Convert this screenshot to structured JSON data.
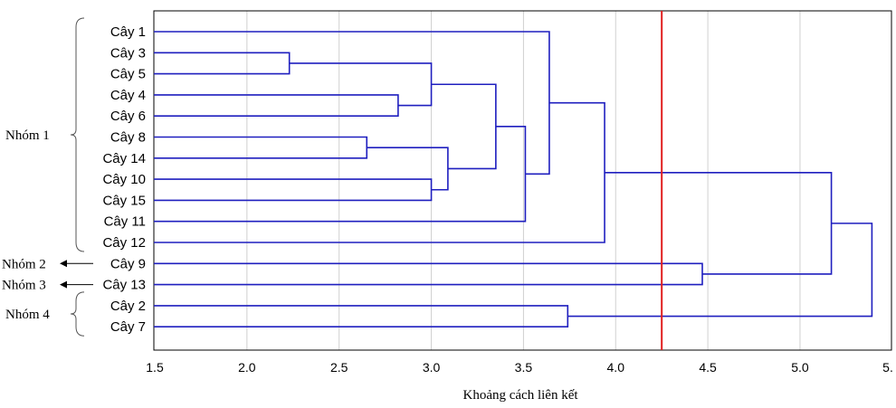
{
  "chart_data": {
    "type": "dendrogram",
    "title": "",
    "xlabel": "Khoảng cách liên kết",
    "ylabel": "",
    "xlim": [
      1.5,
      5.5
    ],
    "xticks": [
      "1.5",
      "2.0",
      "2.5",
      "3.0",
      "3.5",
      "4.0",
      "4.5",
      "5.0",
      "5."
    ],
    "grid": true,
    "line_color": "#1f1fbf",
    "cutoff_color": "#e02020",
    "cutoff": 4.25,
    "leaves": [
      "Cây 1",
      "Cây 3",
      "Cây 5",
      "Cây 4",
      "Cây 6",
      "Cây 8",
      "Cây 14",
      "Cây 10",
      "Cây 15",
      "Cây 11",
      "Cây 12",
      "Cây 9",
      "Cây 13",
      "Cây 2",
      "Cây 7"
    ],
    "merges": [
      {
        "a": 1,
        "b": 2,
        "height": 2.23
      },
      {
        "a": 3,
        "b": 4,
        "height": 2.82
      },
      {
        "a": 5,
        "b": 6,
        "height": 2.65
      },
      {
        "a": 7,
        "b": 8,
        "height": 3.0
      },
      {
        "a": "m0",
        "b": "m1",
        "height": 3.0
      },
      {
        "a": "m2",
        "b": "m3",
        "height": 3.09
      },
      {
        "a": "m4",
        "b": "m5",
        "height": 3.35
      },
      {
        "a": "m6",
        "b": 9,
        "height": 3.51
      },
      {
        "a": 0,
        "b": "m7",
        "height": 3.64
      },
      {
        "a": "m8",
        "b": 10,
        "height": 3.94
      },
      {
        "a": 11,
        "b": 12,
        "height": 4.47
      },
      {
        "a": 13,
        "b": 14,
        "height": 3.74
      },
      {
        "a": "m9",
        "b": "m10",
        "height": 5.17
      },
      {
        "a": "m12",
        "b": "m11",
        "height": 5.39
      }
    ],
    "groups": [
      {
        "label": "Nhóm 1",
        "first": 0,
        "last": 10,
        "marker": "brace"
      },
      {
        "label": "Nhóm 2",
        "first": 11,
        "last": 11,
        "marker": "arrow"
      },
      {
        "label": "Nhóm 3",
        "first": 12,
        "last": 12,
        "marker": "arrow"
      },
      {
        "label": "Nhóm 4",
        "first": 13,
        "last": 14,
        "marker": "brace"
      }
    ]
  }
}
